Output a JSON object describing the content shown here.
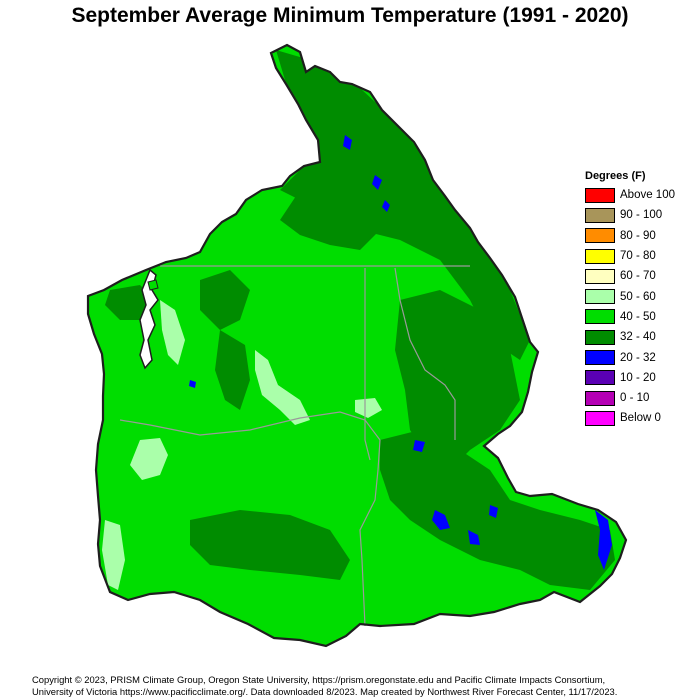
{
  "title": "September Average Minimum Temperature (1991 - 2020)",
  "legend": {
    "title": "Degrees (F)",
    "items": [
      {
        "label": "Above 100",
        "color": "#ff0000"
      },
      {
        "label": "90 - 100",
        "color": "#a8955a"
      },
      {
        "label": "80 - 90",
        "color": "#ff8c00"
      },
      {
        "label": "70 - 80",
        "color": "#ffff00"
      },
      {
        "label": "60 - 70",
        "color": "#ffffc0"
      },
      {
        "label": "50 - 60",
        "color": "#aaffaa"
      },
      {
        "label": "40 - 50",
        "color": "#00dd00"
      },
      {
        "label": "32 - 40",
        "color": "#008c00"
      },
      {
        "label": "20 - 32",
        "color": "#0000ff"
      },
      {
        "label": "10 - 20",
        "color": "#5a00b4"
      },
      {
        "label": "0 - 10",
        "color": "#b400b4"
      },
      {
        "label": "Below 0",
        "color": "#ff00ff"
      }
    ]
  },
  "colors": {
    "land_light": "#00dd00",
    "land_dark": "#008c00",
    "land_pale": "#aaffaa",
    "cold": "#0000ff",
    "outline": "#1e1e1e",
    "state_border": "#9a9a9a"
  },
  "footer": {
    "line1": "Copyright © 2023, PRISM Climate Group, Oregon State University, https://prism.oregonstate.edu and Pacific Climate Impacts Consortium,",
    "line2": "University of Victoria https://www.pacificclimate.org/.  Data downloaded 8/2023. Map created by Northwest River Forecast Center, 11/17/2023."
  }
}
